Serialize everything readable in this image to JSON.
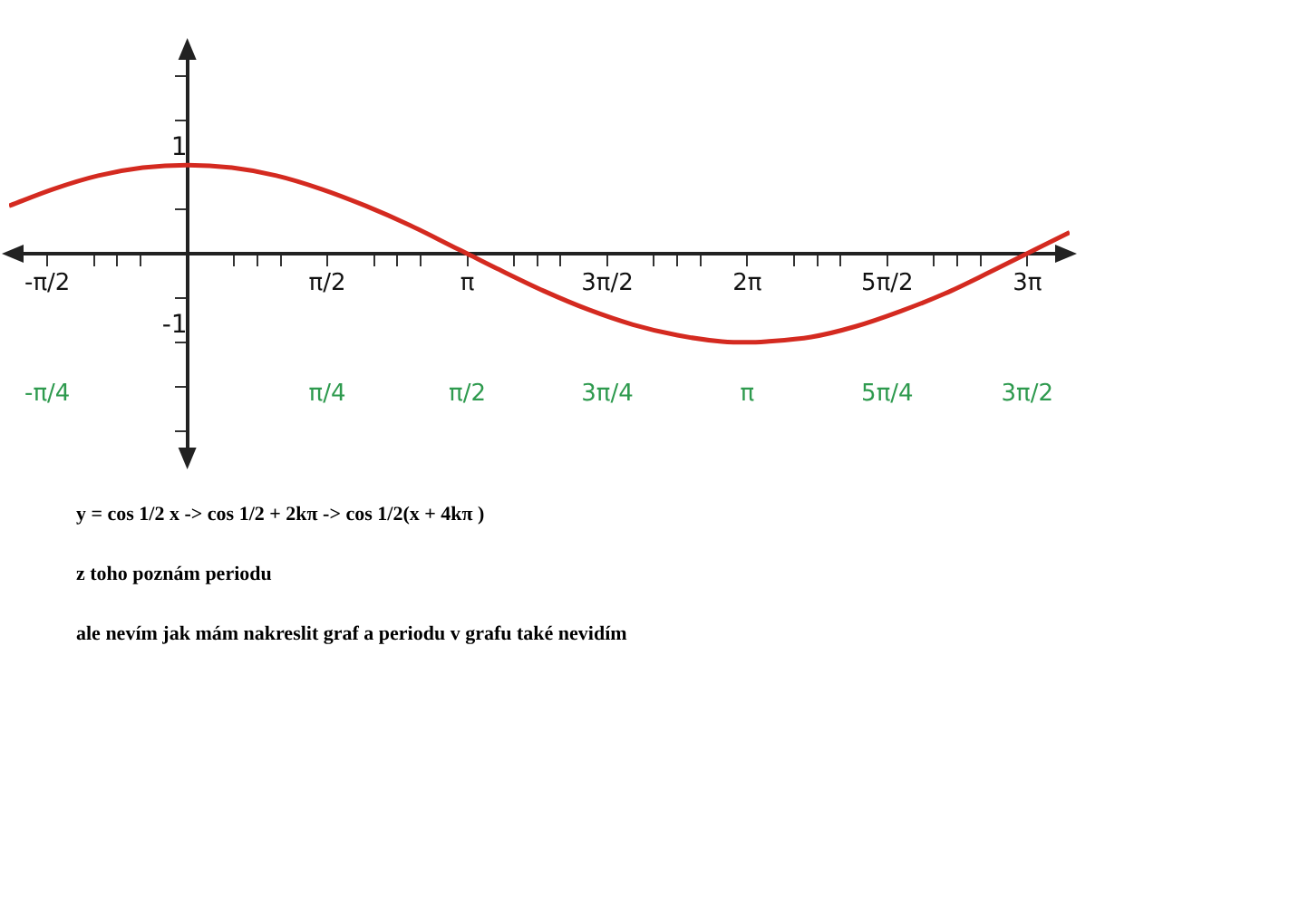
{
  "chart_data": {
    "type": "line",
    "legend": false,
    "grid": false,
    "marker": "none",
    "line_style": "solid",
    "x": [
      -2,
      -1.5,
      -1,
      -0.5,
      0,
      0.5,
      1,
      1.5,
      2,
      2.5,
      3,
      3.1416,
      3.5,
      4,
      4.5,
      5,
      5.5,
      6,
      6.2832,
      6.5,
      7,
      7.5,
      8,
      8.5,
      9,
      9.5,
      9.9
    ],
    "series": [
      {
        "color": "#d42a20",
        "values": [
          0.54,
          0.73,
          0.88,
          0.97,
          1,
          0.97,
          0.88,
          0.73,
          0.54,
          0.32,
          0.07,
          0,
          -0.18,
          -0.42,
          -0.63,
          -0.8,
          -0.92,
          -0.99,
          -1,
          -0.99,
          -0.94,
          -0.82,
          -0.65,
          -0.45,
          -0.21,
          0.04,
          0.24
        ]
      }
    ],
    "xlim": [
      -2,
      9.9
    ],
    "xticks": [
      {
        "value": -1.5708,
        "label": "-π/2"
      },
      {
        "value": -1.0472,
        "label": null
      },
      {
        "value": -0.7854,
        "label": null
      },
      {
        "value": -0.5236,
        "label": null
      },
      {
        "value": 0.5236,
        "label": null
      },
      {
        "value": 0.7854,
        "label": null
      },
      {
        "value": 1.0472,
        "label": null
      },
      {
        "value": 1.5708,
        "label": "π/2"
      },
      {
        "value": 2.0944,
        "label": null
      },
      {
        "value": 2.3562,
        "label": null
      },
      {
        "value": 2.618,
        "label": null
      },
      {
        "value": 3.1416,
        "label": "π"
      },
      {
        "value": 3.6652,
        "label": null
      },
      {
        "value": 3.927,
        "label": null
      },
      {
        "value": 4.1888,
        "label": null
      },
      {
        "value": 4.7124,
        "label": "3π/2"
      },
      {
        "value": 5.236,
        "label": null
      },
      {
        "value": 5.4978,
        "label": null
      },
      {
        "value": 5.7596,
        "label": null
      },
      {
        "value": 6.2832,
        "label": "2π"
      },
      {
        "value": 6.8068,
        "label": null
      },
      {
        "value": 7.0686,
        "label": null
      },
      {
        "value": 7.3304,
        "label": null
      },
      {
        "value": 7.854,
        "label": "5π/2"
      },
      {
        "value": 8.3776,
        "label": null
      },
      {
        "value": 8.6394,
        "label": null
      },
      {
        "value": 8.9012,
        "label": null
      },
      {
        "value": 9.4248,
        "label": "3π"
      }
    ],
    "x2lim": [
      -1,
      4.95
    ],
    "x2ticks": [
      {
        "value": -0.7854,
        "label": "-π/4"
      },
      {
        "value": 0.7854,
        "label": "π/4"
      },
      {
        "value": 1.5708,
        "label": "π/2"
      },
      {
        "value": 2.3562,
        "label": "3π/4"
      },
      {
        "value": 3.1416,
        "label": "π"
      },
      {
        "value": 3.927,
        "label": "5π/4"
      },
      {
        "value": 4.7124,
        "label": "3π/2"
      }
    ],
    "ylim": [
      -2.35,
      2.35
    ],
    "yticks": [
      {
        "value": -2,
        "label": null
      },
      {
        "value": -1.5,
        "label": null
      },
      {
        "value": -1,
        "label": "-1"
      },
      {
        "value": -0.5,
        "label": null
      },
      {
        "value": 0.5,
        "label": null
      },
      {
        "value": 1,
        "label": "1"
      },
      {
        "value": 1.5,
        "label": null
      },
      {
        "value": 2,
        "label": null
      }
    ],
    "annotations": [
      "y = cos  1/2 x  ->  cos 1/2 + 2kπ  -> cos 1/2(x + 4kπ )",
      "z toho poznám periodu",
      "ale nevím jak mám nakreslit graf a periodu v grafu také nevidím"
    ]
  }
}
